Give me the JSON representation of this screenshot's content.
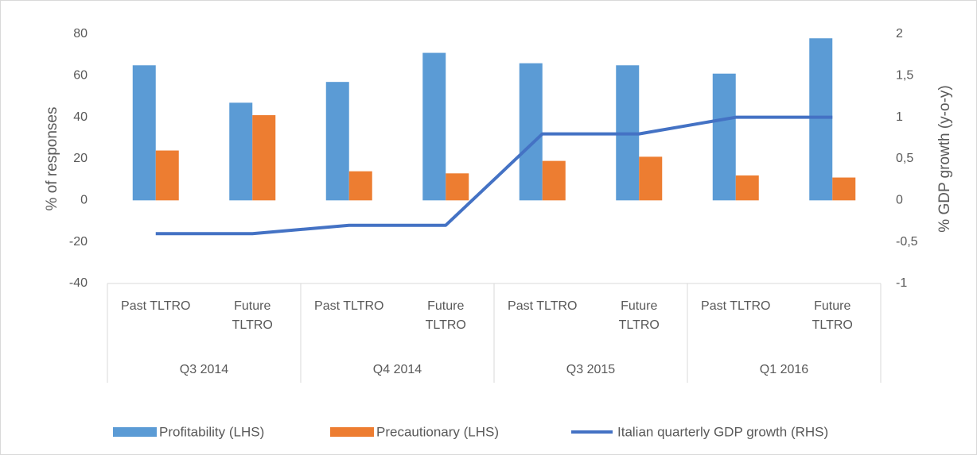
{
  "chart_data": {
    "type": "bar",
    "categories": [
      "Past TLTRO",
      "Future TLTRO",
      "Past TLTRO",
      "Future TLTRO",
      "Past TLTRO",
      "Future TLTRO",
      "Past TLTRO",
      "Future TLTRO"
    ],
    "groups": [
      "Q3 2014",
      "Q4 2014",
      "Q3 2015",
      "Q1 2016"
    ],
    "series": [
      {
        "name": "Profitability (LHS)",
        "color": "#5b9bd5",
        "type": "bar",
        "values": [
          65,
          47,
          57,
          71,
          66,
          65,
          61,
          78
        ]
      },
      {
        "name": "Precautionary (LHS)",
        "color": "#ed7d31",
        "type": "bar",
        "values": [
          24,
          41,
          14,
          13,
          19,
          21,
          12,
          11
        ]
      },
      {
        "name": "Italian quarterly GDP growth (RHS)",
        "color": "#4472c4",
        "type": "line",
        "axis": "y2",
        "values": [
          -0.4,
          -0.4,
          -0.3,
          -0.3,
          0.8,
          0.8,
          1,
          1
        ]
      }
    ],
    "ylabel": "% of responses",
    "y2label": "% GDP growth (y-o-y)",
    "ylim": [
      -40,
      80
    ],
    "yticks": [
      -40,
      -20,
      0,
      20,
      40,
      60,
      80
    ],
    "y2lim": [
      -1,
      2
    ],
    "y2ticks": [
      -1,
      {
        "value": -0.5,
        "label": "-0,5"
      },
      0,
      {
        "value": 0.5,
        "label": "0,5"
      },
      1,
      {
        "value": 1.5,
        "label": "1,5"
      },
      2
    ],
    "legend": "bottom"
  }
}
